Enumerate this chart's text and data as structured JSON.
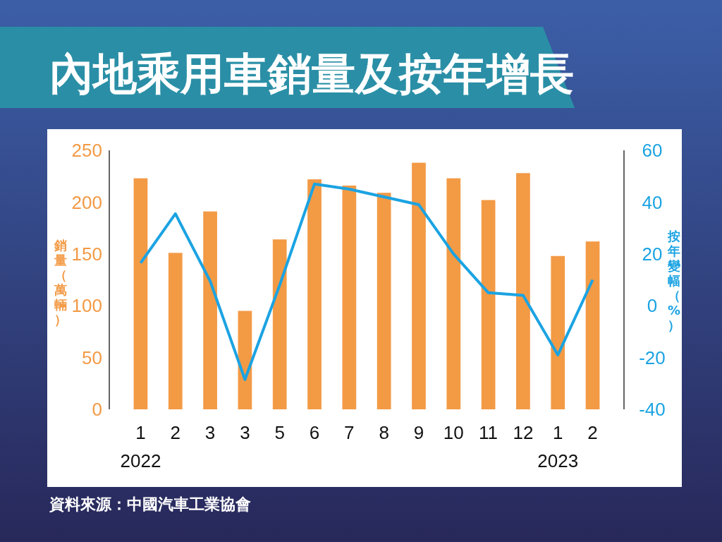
{
  "chart_data": {
    "type": "bar",
    "title": "內地乘用車銷量及按年增長",
    "ylabel": "銷量（萬輛）",
    "y2label": "按年變幅（%）",
    "categories": [
      "1\n2022",
      "2",
      "3",
      "3",
      "5",
      "6",
      "7",
      "8",
      "9",
      "10",
      "11",
      "12",
      "1\n2023",
      "2"
    ],
    "series": [
      {
        "color": "#f39a45",
        "values": [
          223,
          151,
          191,
          95,
          164,
          222,
          216,
          209,
          238,
          223,
          202,
          228,
          148,
          162
        ]
      },
      {
        "type": "line",
        "axis": "y2",
        "color": "#1ba3e2",
        "values": [
          16.5,
          35.5,
          9.5,
          -28.5,
          8,
          47,
          45,
          42,
          39,
          20,
          5,
          4,
          -19,
          10
        ]
      }
    ],
    "ylim": [
      0,
      250
    ],
    "yticks": [
      0,
      50,
      100,
      150,
      200,
      250
    ],
    "y2lim": [
      -40,
      60
    ],
    "y2ticks": [
      -40,
      -20,
      0,
      20,
      40,
      60
    ],
    "grid": false,
    "marker": "none",
    "line_style": "solid",
    "annotations": [
      "資料來源：中國汽車工業協會"
    ]
  }
}
